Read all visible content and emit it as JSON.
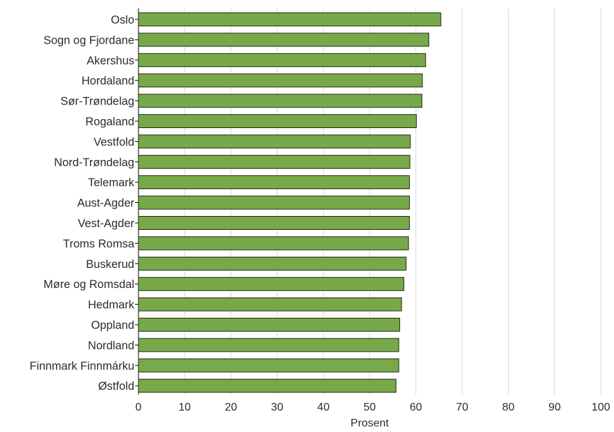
{
  "chart_data": {
    "type": "bar",
    "orientation": "horizontal",
    "title": "",
    "xlabel": "Prosent",
    "ylabel": "",
    "xlim": [
      0,
      100
    ],
    "xticks": [
      0,
      10,
      20,
      30,
      40,
      50,
      60,
      70,
      80,
      90,
      100
    ],
    "grid": "vertical",
    "legend": "none",
    "bar_color": "#77a94a",
    "bar_edge_color": "#1f2a14",
    "grid_color": "#d9d9d9",
    "categories": [
      "Oslo",
      "Sogn og Fjordane",
      "Akershus",
      "Hordaland",
      "Sør-Trøndelag",
      "Rogaland",
      "Vestfold",
      "Nord-Trøndelag",
      "Telemark",
      "Aust-Agder",
      "Vest-Agder",
      "Troms Romsa",
      "Buskerud",
      "Møre og Romsdal",
      "Hedmark",
      "Oppland",
      "Nordland",
      "Finnmark Finnmárku",
      "Østfold"
    ],
    "values": [
      65.4,
      62.8,
      62.1,
      61.4,
      61.3,
      60.1,
      58.8,
      58.7,
      58.6,
      58.6,
      58.6,
      58.4,
      57.9,
      57.4,
      56.9,
      56.5,
      56.3,
      56.3,
      55.7
    ]
  }
}
